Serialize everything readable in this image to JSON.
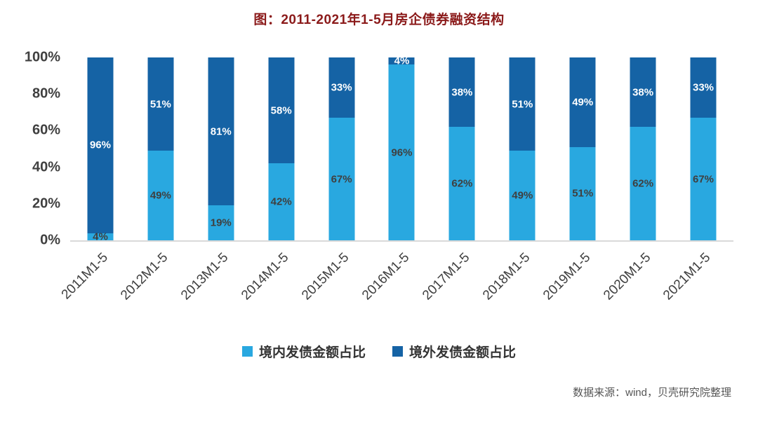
{
  "title": "图：2011-2021年1-5月房企债券融资结构",
  "source": "数据来源：wind，贝壳研究院整理",
  "colors": {
    "title": "#8b1a1a",
    "axis_text": "#404040",
    "baseline": "#d9d9d9",
    "domestic_series": "#29a8e0",
    "overseas_series": "#1563a5"
  },
  "chart_data": {
    "type": "bar",
    "variant": "stacked-100-percent",
    "title": "图：2011-2021年1-5月房企债券融资结构",
    "categories": [
      "2011M1-5",
      "2012M1-5",
      "2013M1-5",
      "2014M1-5",
      "2015M1-5",
      "2016M1-5",
      "2017M1-5",
      "2018M1-5",
      "2019M1-5",
      "2020M1-5",
      "2021M1-5"
    ],
    "series": [
      {
        "name": "境内发债金额占比",
        "color": "#29a8e0",
        "label_color": "#3f3f3f",
        "values": [
          4,
          49,
          19,
          42,
          67,
          96,
          62,
          49,
          51,
          62,
          67
        ]
      },
      {
        "name": "境外发债金额占比",
        "color": "#1563a5",
        "label_color": "#ffffff",
        "values": [
          96,
          51,
          81,
          58,
          33,
          4,
          38,
          51,
          49,
          38,
          33
        ]
      }
    ],
    "value_suffix": "%",
    "y_ticks": [
      "100%",
      "80%",
      "60%",
      "40%",
      "20%",
      "0%"
    ],
    "ylim": [
      0,
      100
    ],
    "grid": false,
    "legend_position": "bottom"
  }
}
